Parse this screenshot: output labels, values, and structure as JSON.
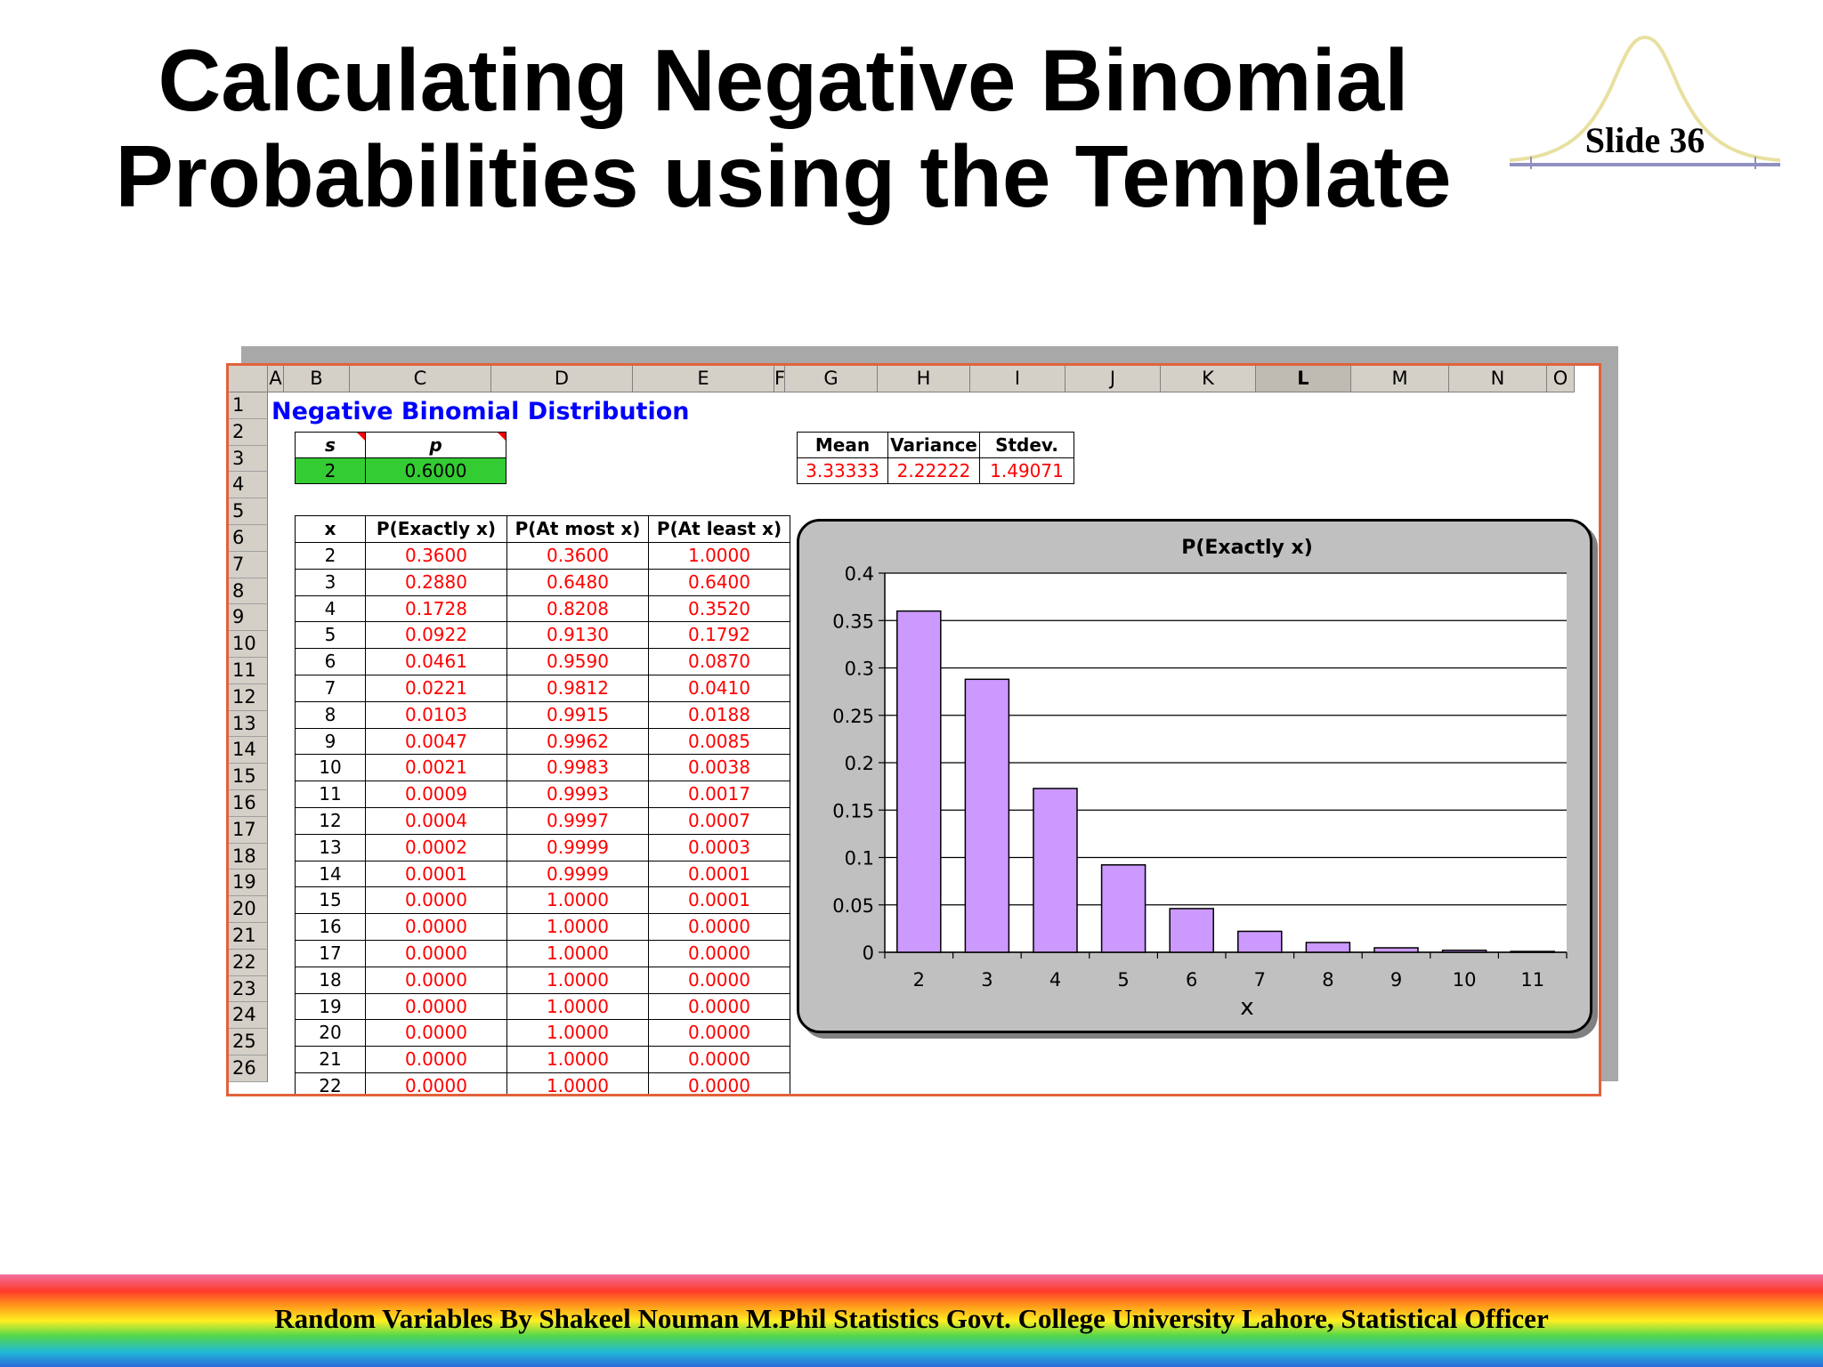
{
  "slide": {
    "title_line1": "Calculating Negative Binomial",
    "title_line2": "Probabilities using the Template",
    "slide_number": "Slide 36",
    "footer": "Random Variables  By Shakeel Nouman M.Phil Statistics Govt. College University Lahore, Statistical Officer"
  },
  "sheet": {
    "columns": [
      "A",
      "B",
      "C",
      "D",
      "E",
      "F",
      "G",
      "H",
      "I",
      "J",
      "K",
      "L",
      "M",
      "N",
      "O"
    ],
    "selected_column": "L",
    "rows": [
      "1",
      "2",
      "3",
      "4",
      "5",
      "6",
      "7",
      "8",
      "9",
      "10",
      "11",
      "12",
      "13",
      "14",
      "15",
      "16",
      "17",
      "18",
      "19",
      "20",
      "21",
      "22",
      "23",
      "24",
      "25",
      "26"
    ],
    "title": "Negative Binomial Distribution",
    "params": {
      "s_label": "s",
      "p_label": "p",
      "s_value": "2",
      "p_value": "0.6000"
    },
    "stats": {
      "mean_label": "Mean",
      "variance_label": "Variance",
      "stdev_label": "Stdev.",
      "mean": "3.33333",
      "variance": "2.22222",
      "stdev": "1.49071"
    },
    "table": {
      "headers": [
        "x",
        "P(Exactly x)",
        "P(At most x)",
        "P(At least x)"
      ],
      "rows": [
        [
          "2",
          "0.3600",
          "0.3600",
          "1.0000"
        ],
        [
          "3",
          "0.2880",
          "0.6480",
          "0.6400"
        ],
        [
          "4",
          "0.1728",
          "0.8208",
          "0.3520"
        ],
        [
          "5",
          "0.0922",
          "0.9130",
          "0.1792"
        ],
        [
          "6",
          "0.0461",
          "0.9590",
          "0.0870"
        ],
        [
          "7",
          "0.0221",
          "0.9812",
          "0.0410"
        ],
        [
          "8",
          "0.0103",
          "0.9915",
          "0.0188"
        ],
        [
          "9",
          "0.0047",
          "0.9962",
          "0.0085"
        ],
        [
          "10",
          "0.0021",
          "0.9983",
          "0.0038"
        ],
        [
          "11",
          "0.0009",
          "0.9993",
          "0.0017"
        ],
        [
          "12",
          "0.0004",
          "0.9997",
          "0.0007"
        ],
        [
          "13",
          "0.0002",
          "0.9999",
          "0.0003"
        ],
        [
          "14",
          "0.0001",
          "0.9999",
          "0.0001"
        ],
        [
          "15",
          "0.0000",
          "1.0000",
          "0.0001"
        ],
        [
          "16",
          "0.0000",
          "1.0000",
          "0.0000"
        ],
        [
          "17",
          "0.0000",
          "1.0000",
          "0.0000"
        ],
        [
          "18",
          "0.0000",
          "1.0000",
          "0.0000"
        ],
        [
          "19",
          "0.0000",
          "1.0000",
          "0.0000"
        ],
        [
          "20",
          "0.0000",
          "1.0000",
          "0.0000"
        ],
        [
          "21",
          "0.0000",
          "1.0000",
          "0.0000"
        ],
        [
          "22",
          "0.0000",
          "1.0000",
          "0.0000"
        ]
      ]
    }
  },
  "chart_data": {
    "type": "bar",
    "title": "P(Exactly x)",
    "xlabel": "x",
    "ylabel": "",
    "categories": [
      "2",
      "3",
      "4",
      "5",
      "6",
      "7",
      "8",
      "9",
      "10",
      "11"
    ],
    "values": [
      0.36,
      0.288,
      0.1728,
      0.0922,
      0.0461,
      0.0221,
      0.0103,
      0.0047,
      0.0021,
      0.0009
    ],
    "yticks": [
      "0",
      "0.05",
      "0.1",
      "0.15",
      "0.2",
      "0.25",
      "0.3",
      "0.35",
      "0.4"
    ],
    "ylim": [
      0,
      0.4
    ],
    "grid": true,
    "bar_color": "#cc99ff"
  },
  "colors": {
    "accent_border": "#e2623b",
    "input_cell": "#33cc33",
    "value_text": "#ff0000",
    "sheet_title": "#0000ff"
  }
}
